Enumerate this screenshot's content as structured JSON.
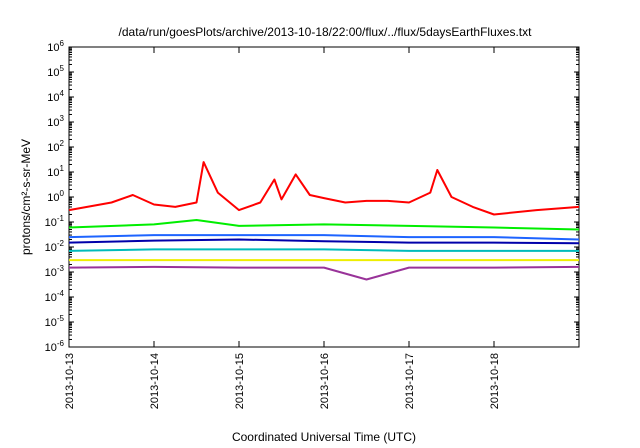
{
  "chart_data": {
    "type": "line",
    "title": "/data/run/goesPlots/archive/2013-10-18/22:00/flux/../flux/5daysEarthFluxes.txt",
    "xlabel": "Coordinated Universal Time (UTC)",
    "ylabel": "protons/cm²-s-sr-MeV",
    "yscale": "log",
    "ylim": [
      1e-06,
      1000000.0
    ],
    "xlim": [
      "2013-10-13",
      "2013-10-19"
    ],
    "x_ticks": [
      "2013-10-13",
      "2013-10-14",
      "2013-10-15",
      "2013-10-16",
      "2013-10-17",
      "2013-10-18"
    ],
    "y_ticks": [
      "10-6",
      "10-5",
      "10-4",
      "10-3",
      "10-2",
      "10-1",
      "100",
      "101",
      "102",
      "103",
      "104",
      "105",
      "106"
    ],
    "grid": false,
    "legend": "none",
    "series": [
      {
        "color": "#ff0000",
        "x": [
          "2013-10-13",
          "2013-10-13 12:00",
          "2013-10-13 18:00",
          "2013-10-14",
          "2013-10-14 06:00",
          "2013-10-14 12:00",
          "2013-10-14 14:00",
          "2013-10-14 18:00",
          "2013-10-15",
          "2013-10-15 06:00",
          "2013-10-15 10:00",
          "2013-10-15 12:00",
          "2013-10-15 16:00",
          "2013-10-15 20:00",
          "2013-10-16",
          "2013-10-16 06:00",
          "2013-10-16 12:00",
          "2013-10-16 18:00",
          "2013-10-17",
          "2013-10-17 06:00",
          "2013-10-17 08:00",
          "2013-10-17 12:00",
          "2013-10-17 18:00",
          "2013-10-18",
          "2013-10-18 12:00",
          "2013-10-19"
        ],
        "values": [
          0.3,
          0.6,
          1.2,
          0.5,
          0.4,
          0.6,
          25,
          1.5,
          0.3,
          0.6,
          5.0,
          0.8,
          8.0,
          1.2,
          0.9,
          0.6,
          0.7,
          0.7,
          0.6,
          1.5,
          12,
          1.0,
          0.4,
          0.2,
          0.3,
          0.4
        ]
      },
      {
        "color": "#00ee00",
        "x": [
          "2013-10-13",
          "2013-10-14",
          "2013-10-14 12:00",
          "2013-10-15",
          "2013-10-16",
          "2013-10-17",
          "2013-10-18",
          "2013-10-19"
        ],
        "values": [
          0.06,
          0.08,
          0.12,
          0.07,
          0.08,
          0.07,
          0.06,
          0.05
        ]
      },
      {
        "color": "#1e64ff",
        "x": [
          "2013-10-13",
          "2013-10-14",
          "2013-10-15",
          "2013-10-16",
          "2013-10-17",
          "2013-10-18",
          "2013-10-19"
        ],
        "values": [
          0.025,
          0.03,
          0.03,
          0.03,
          0.025,
          0.025,
          0.02
        ]
      },
      {
        "color": "#0000aa",
        "x": [
          "2013-10-13",
          "2013-10-14",
          "2013-10-15",
          "2013-10-16",
          "2013-10-17",
          "2013-10-18",
          "2013-10-19"
        ],
        "values": [
          0.015,
          0.018,
          0.02,
          0.017,
          0.015,
          0.015,
          0.014
        ]
      },
      {
        "color": "#00bbbb",
        "x": [
          "2013-10-13",
          "2013-10-14",
          "2013-10-15",
          "2013-10-16",
          "2013-10-17",
          "2013-10-18",
          "2013-10-19"
        ],
        "values": [
          0.007,
          0.008,
          0.008,
          0.008,
          0.007,
          0.007,
          0.007
        ]
      },
      {
        "color": "#eeee00",
        "x": [
          "2013-10-13",
          "2013-10-14",
          "2013-10-15",
          "2013-10-16",
          "2013-10-17",
          "2013-10-18",
          "2013-10-19"
        ],
        "values": [
          0.003,
          0.003,
          0.003,
          0.003,
          0.003,
          0.003,
          0.003
        ]
      },
      {
        "color": "#993399",
        "x": [
          "2013-10-13",
          "2013-10-14",
          "2013-10-15",
          "2013-10-16",
          "2013-10-16 12:00",
          "2013-10-17",
          "2013-10-18",
          "2013-10-19"
        ],
        "values": [
          0.0015,
          0.0016,
          0.0015,
          0.0015,
          0.0005,
          0.0015,
          0.0015,
          0.0016
        ]
      }
    ]
  }
}
